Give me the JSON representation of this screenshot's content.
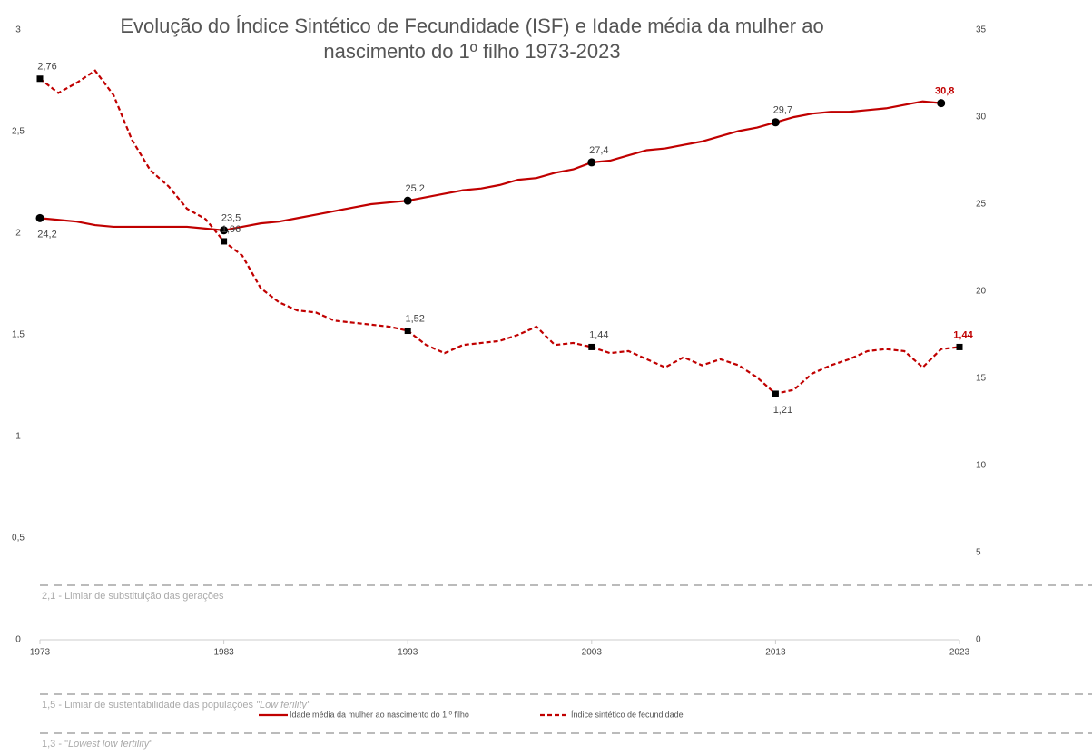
{
  "chart_data": {
    "type": "line",
    "title": [
      "Evolução do Índice Sintético de Fecundidade (ISF) e Idade média da mulher ao",
      "nascimento do 1º filho 1973-2023"
    ],
    "x": [
      1973,
      1974,
      1975,
      1976,
      1977,
      1978,
      1979,
      1980,
      1981,
      1982,
      1983,
      1984,
      1985,
      1986,
      1987,
      1988,
      1989,
      1990,
      1991,
      1992,
      1993,
      1994,
      1995,
      1996,
      1997,
      1998,
      1999,
      2000,
      2001,
      2002,
      2003,
      2004,
      2005,
      2006,
      2007,
      2008,
      2009,
      2010,
      2011,
      2012,
      2013,
      2014,
      2015,
      2016,
      2017,
      2018,
      2019,
      2020,
      2021,
      2022,
      2023
    ],
    "xlim": [
      1973,
      2023
    ],
    "xticks": [
      1973,
      1983,
      1993,
      2003,
      2013,
      2023
    ],
    "ylim": [
      0,
      3
    ],
    "yticks": [
      0,
      {
        "value": 0.5,
        "label": "0,5"
      },
      1,
      {
        "value": 1.5,
        "label": "1,5"
      },
      2,
      {
        "value": 2.5,
        "label": "2,5"
      },
      3
    ],
    "y2lim": [
      0,
      35
    ],
    "y2ticks": [
      0,
      5,
      10,
      15,
      20,
      25,
      30,
      35
    ],
    "series": [
      {
        "name": "Idade média da mulher ao nascimento do 1.º filho",
        "color": "#c00000",
        "axis": "y2",
        "dashed": false,
        "values": [
          24.2,
          24.1,
          24.0,
          23.8,
          23.7,
          23.7,
          23.7,
          23.7,
          23.7,
          23.6,
          23.5,
          23.7,
          23.9,
          24.0,
          24.2,
          24.4,
          24.6,
          24.8,
          25.0,
          25.1,
          25.2,
          25.4,
          25.6,
          25.8,
          25.9,
          26.1,
          26.4,
          26.5,
          26.8,
          27.0,
          27.4,
          27.5,
          27.8,
          28.1,
          28.2,
          28.4,
          28.6,
          28.9,
          29.2,
          29.4,
          29.7,
          30.0,
          30.2,
          30.3,
          30.3,
          30.4,
          30.5,
          30.7,
          30.9,
          30.8,
          null
        ],
        "value_labels": [
          "24,2",
          null,
          null,
          null,
          null,
          null,
          null,
          null,
          null,
          null,
          "23,5",
          null,
          null,
          null,
          null,
          null,
          null,
          null,
          null,
          null,
          "25,2",
          null,
          null,
          null,
          null,
          null,
          null,
          null,
          null,
          null,
          "27,4",
          null,
          null,
          null,
          null,
          null,
          null,
          null,
          null,
          null,
          "29,7",
          null,
          null,
          null,
          null,
          null,
          null,
          null,
          null,
          "30,8",
          null
        ]
      },
      {
        "name": "Índice sintético de fecundidade",
        "color": "#c00000",
        "axis": "y",
        "dashed": true,
        "values": [
          2.76,
          2.69,
          2.74,
          2.8,
          2.68,
          2.46,
          2.31,
          2.23,
          2.12,
          2.07,
          1.96,
          1.89,
          1.73,
          1.66,
          1.62,
          1.61,
          1.57,
          1.56,
          1.55,
          1.54,
          1.52,
          1.45,
          1.41,
          1.45,
          1.46,
          1.47,
          1.5,
          1.54,
          1.45,
          1.46,
          1.44,
          1.41,
          1.42,
          1.38,
          1.34,
          1.39,
          1.35,
          1.38,
          1.35,
          1.29,
          1.21,
          1.23,
          1.31,
          1.35,
          1.38,
          1.42,
          1.43,
          1.42,
          1.34,
          1.43,
          1.44
        ],
        "value_labels": [
          "2,76",
          null,
          null,
          null,
          null,
          null,
          null,
          null,
          null,
          null,
          "1,96",
          null,
          null,
          null,
          null,
          null,
          null,
          null,
          null,
          null,
          "1,52",
          null,
          null,
          null,
          null,
          null,
          null,
          null,
          null,
          null,
          "1,44",
          null,
          null,
          null,
          null,
          null,
          null,
          null,
          null,
          null,
          "1,21",
          null,
          null,
          null,
          null,
          null,
          null,
          null,
          null,
          null,
          "1,44"
        ]
      }
    ],
    "annotations": [
      {
        "label": "2,1 - Limiar de substituição das gerações"
      },
      {
        "label": "1,5 - Limiar de sustentabilidade  das populações ",
        "emphasis": "\"Low ferility\""
      },
      {
        "label": "1,3 - \"",
        "emphasis": "Lowest low fertility",
        "tail": "\""
      }
    ],
    "legend": "bottom"
  }
}
